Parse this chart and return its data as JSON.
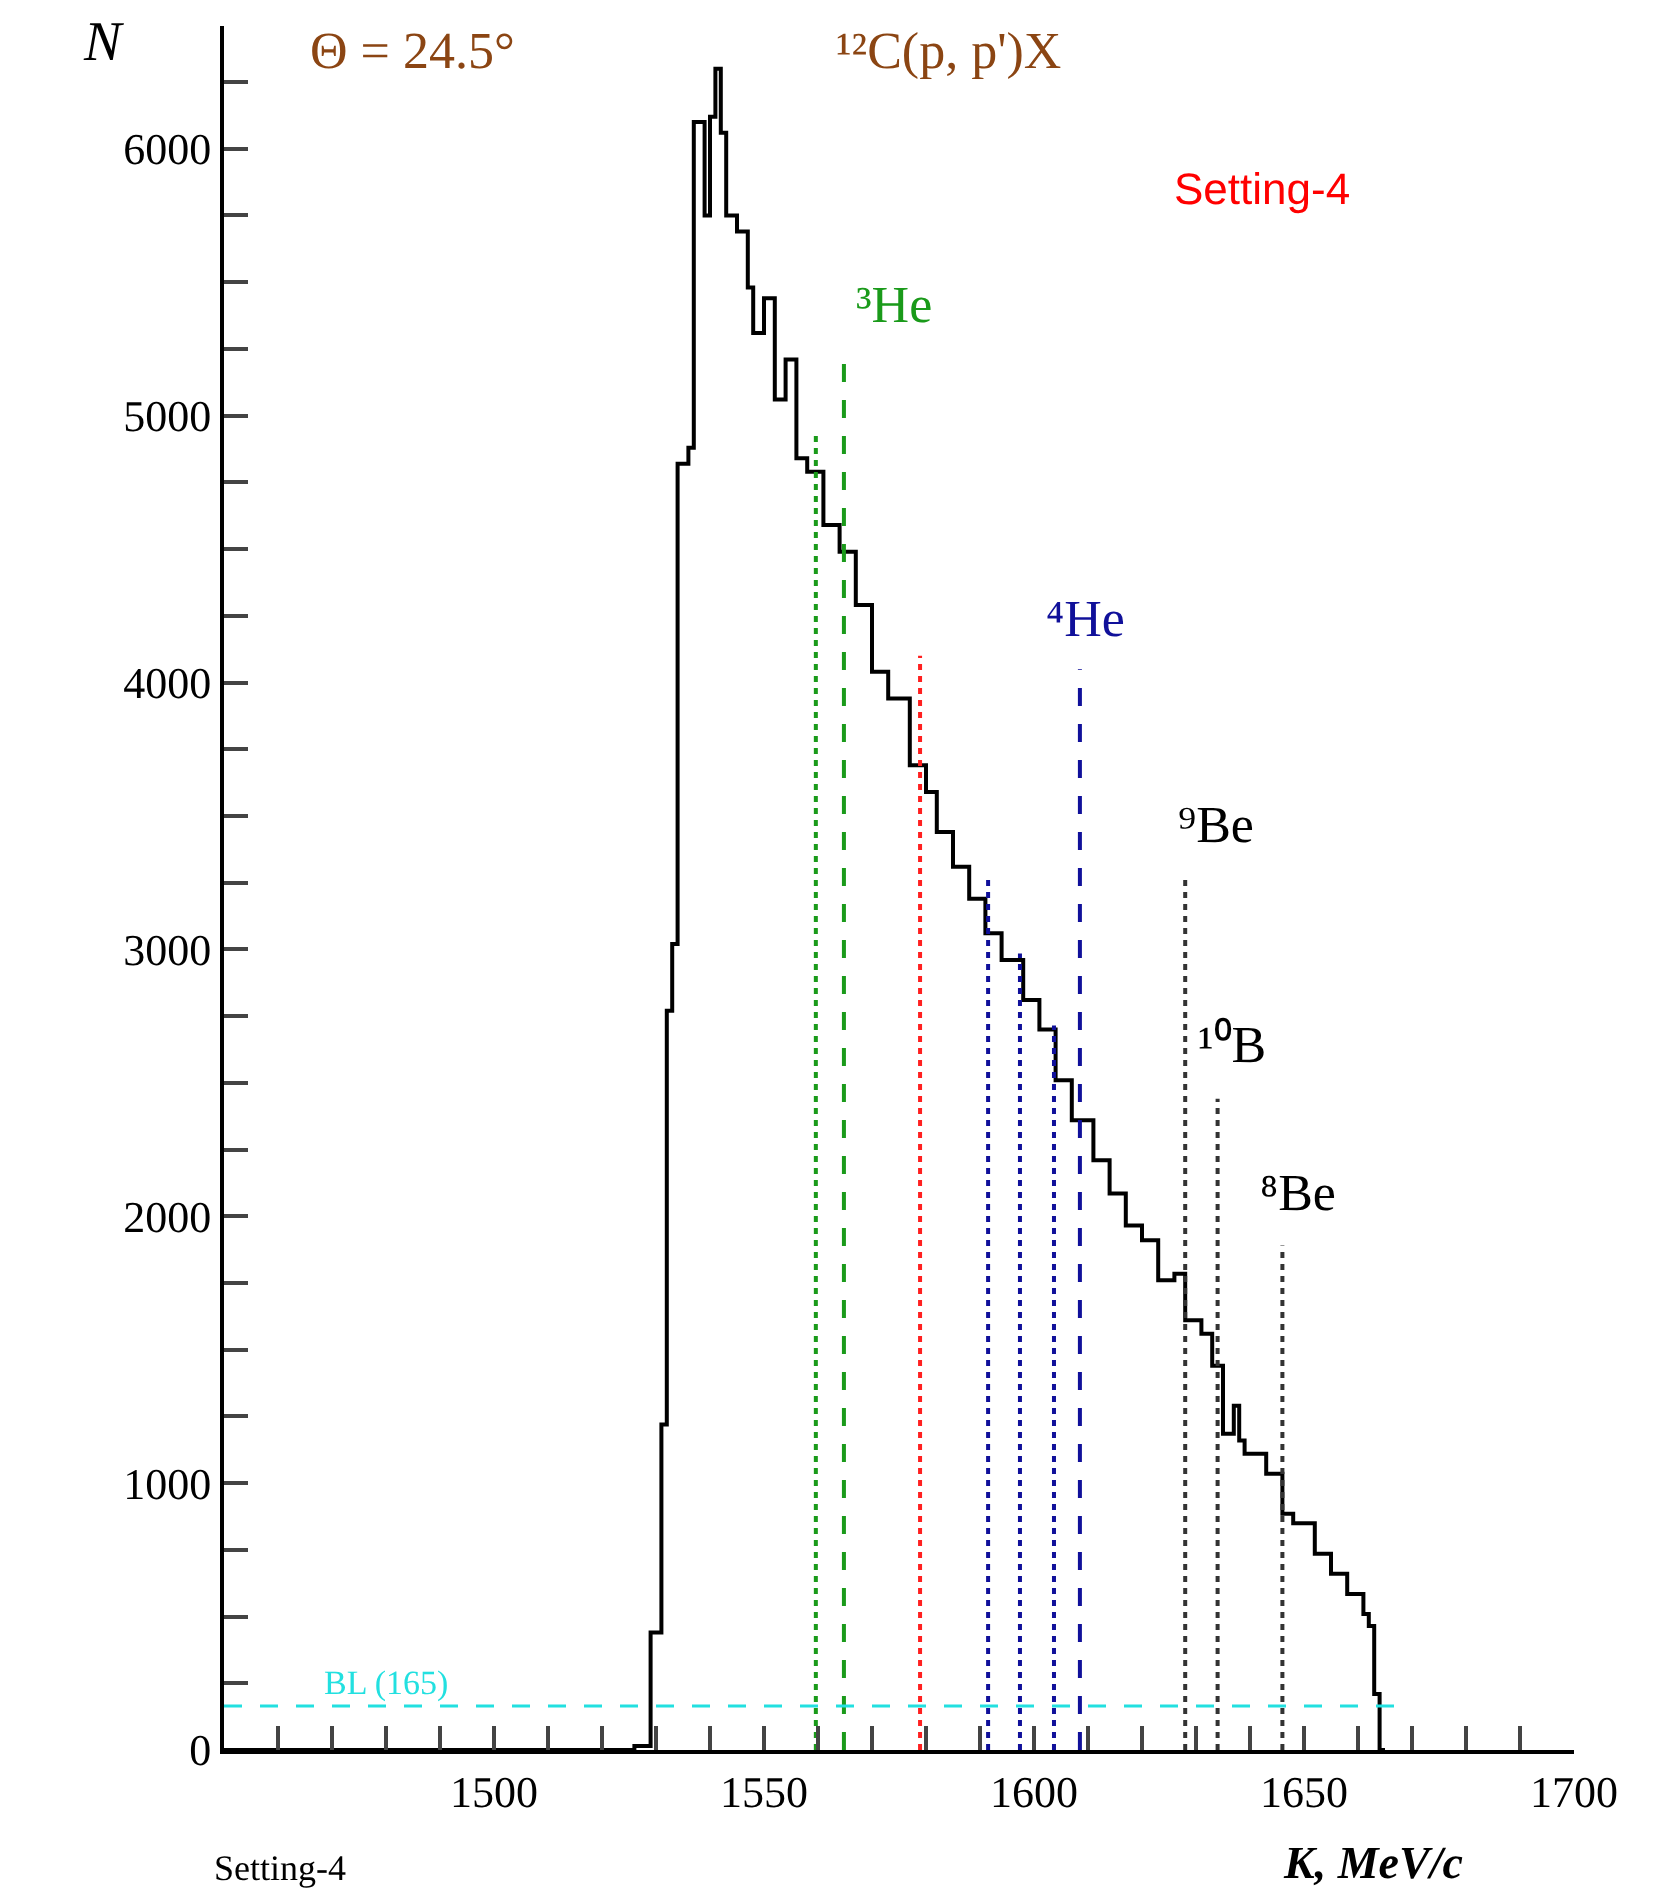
{
  "chart_data": {
    "type": "step",
    "xlabel": "K, MeV/c",
    "ylabel": "N",
    "xlim": [
      1450,
      1700
    ],
    "xticks": [
      {
        "value": 1460,
        "label": null
      },
      {
        "value": 1470,
        "label": null
      },
      {
        "value": 1480,
        "label": null
      },
      {
        "value": 1490,
        "label": null
      },
      1500,
      {
        "value": 1510,
        "label": null
      },
      {
        "value": 1520,
        "label": null
      },
      {
        "value": 1530,
        "label": null
      },
      {
        "value": 1540,
        "label": null
      },
      1550,
      {
        "value": 1560,
        "label": null
      },
      {
        "value": 1570,
        "label": null
      },
      {
        "value": 1580,
        "label": null
      },
      {
        "value": 1590,
        "label": null
      },
      1600,
      {
        "value": 1610,
        "label": null
      },
      {
        "value": 1620,
        "label": null
      },
      {
        "value": 1630,
        "label": null
      },
      {
        "value": 1640,
        "label": null
      },
      1650,
      {
        "value": 1660,
        "label": null
      },
      {
        "value": 1670,
        "label": null
      },
      {
        "value": 1680,
        "label": null
      },
      {
        "value": 1690,
        "label": null
      },
      1700
    ],
    "ylim": [
      0,
      6460
    ],
    "yticks": [
      0,
      {
        "value": 250,
        "label": null
      },
      {
        "value": 500,
        "label": null
      },
      {
        "value": 750,
        "label": null
      },
      1000,
      {
        "value": 1250,
        "label": null
      },
      {
        "value": 1500,
        "label": null
      },
      {
        "value": 1750,
        "label": null
      },
      2000,
      {
        "value": 2250,
        "label": null
      },
      {
        "value": 2500,
        "label": null
      },
      {
        "value": 2750,
        "label": null
      },
      3000,
      {
        "value": 3250,
        "label": null
      },
      {
        "value": 3500,
        "label": null
      },
      {
        "value": 3750,
        "label": null
      },
      4000,
      {
        "value": 4250,
        "label": null
      },
      {
        "value": 4500,
        "label": null
      },
      {
        "value": 4750,
        "label": null
      },
      5000,
      {
        "value": 5250,
        "label": null
      },
      {
        "value": 5500,
        "label": null
      },
      {
        "value": 5750,
        "label": null
      },
      6000,
      {
        "value": 6250,
        "label": null
      }
    ],
    "series": [
      {
        "color": "#000000",
        "x": [
          1450,
          1524,
          1526,
          1529,
          1531,
          1532,
          1533,
          1534,
          1536,
          1537,
          1539,
          1540,
          1541,
          1542,
          1543,
          1545,
          1547,
          1548,
          1550,
          1552,
          1554,
          1556,
          1558,
          1561,
          1564,
          1567,
          1570,
          1573,
          1577,
          1580,
          1582,
          1585,
          1588,
          1591,
          1594,
          1598,
          1601,
          1604,
          1607,
          1611,
          1614,
          1617,
          1620,
          1623,
          1626,
          1628,
          1631,
          1633,
          1635,
          1637,
          1638,
          1639,
          1643,
          1646,
          1648,
          1652,
          1655,
          1658,
          1661,
          1662,
          1663,
          1664,
          1665
        ],
        "values": [
          0,
          0,
          15,
          440,
          1220,
          2770,
          3020,
          4820,
          4880,
          6100,
          5750,
          6120,
          6300,
          6060,
          5750,
          5690,
          5480,
          5310,
          5440,
          5060,
          5210,
          4840,
          4790,
          4590,
          4490,
          4290,
          4040,
          3940,
          3690,
          3590,
          3440,
          3310,
          3190,
          3060,
          2960,
          2810,
          2700,
          2510,
          2360,
          2210,
          2085,
          1965,
          1910,
          1760,
          1785,
          1610,
          1560,
          1440,
          1185,
          1290,
          1160,
          1110,
          1035,
          885,
          850,
          735,
          660,
          585,
          510,
          465,
          210,
          0,
          0
        ]
      },
      {
        "type": "line",
        "color": "#1a9a1a",
        "line_style": "dotted",
        "x": [
          1559.6,
          1559.6
        ],
        "values": [
          0,
          4935
        ]
      },
      {
        "type": "line",
        "color": "#1a9a1a",
        "line_style": "dashed",
        "x": [
          1564.8,
          1564.8
        ],
        "values": [
          0,
          5225
        ]
      },
      {
        "type": "line",
        "color": "#ff2020",
        "line_style": "dotted",
        "x": [
          1578.9,
          1578.9
        ],
        "values": [
          0,
          4100
        ]
      },
      {
        "type": "line",
        "color": "#10109a",
        "line_style": "dotted",
        "x": [
          1591.5,
          1591.5
        ],
        "values": [
          0,
          3275
        ]
      },
      {
        "type": "line",
        "color": "#10109a",
        "line_style": "dotted",
        "x": [
          1597.4,
          1597.4
        ],
        "values": [
          0,
          2985
        ]
      },
      {
        "type": "line",
        "color": "#10109a",
        "line_style": "dotted",
        "x": [
          1603.7,
          1603.7
        ],
        "values": [
          0,
          2715
        ]
      },
      {
        "type": "line",
        "color": "#10109a",
        "line_style": "dashed",
        "x": [
          1608.5,
          1608.5
        ],
        "values": [
          0,
          4050
        ]
      },
      {
        "type": "line",
        "color": "#333333",
        "line_style": "dotted",
        "x": [
          1628,
          1628
        ],
        "values": [
          0,
          3275
        ]
      },
      {
        "type": "line",
        "color": "#333333",
        "line_style": "dotted",
        "x": [
          1634,
          1634
        ],
        "values": [
          0,
          2440
        ]
      },
      {
        "type": "line",
        "color": "#333333",
        "line_style": "dotted",
        "x": [
          1646,
          1646
        ],
        "values": [
          0,
          1890
        ]
      }
    ],
    "ref_lines": [
      {
        "axis": "y",
        "value": 165,
        "label": "BL (165)",
        "color": "#22e0e0",
        "line_style": "dashed"
      }
    ],
    "annotations": [
      "Θ = 24.5°",
      "¹²C(p, p')X",
      "Setting-4",
      "Setting-4",
      "³He",
      "⁴He",
      "⁹Be",
      "¹⁰B",
      "⁸Be"
    ]
  }
}
